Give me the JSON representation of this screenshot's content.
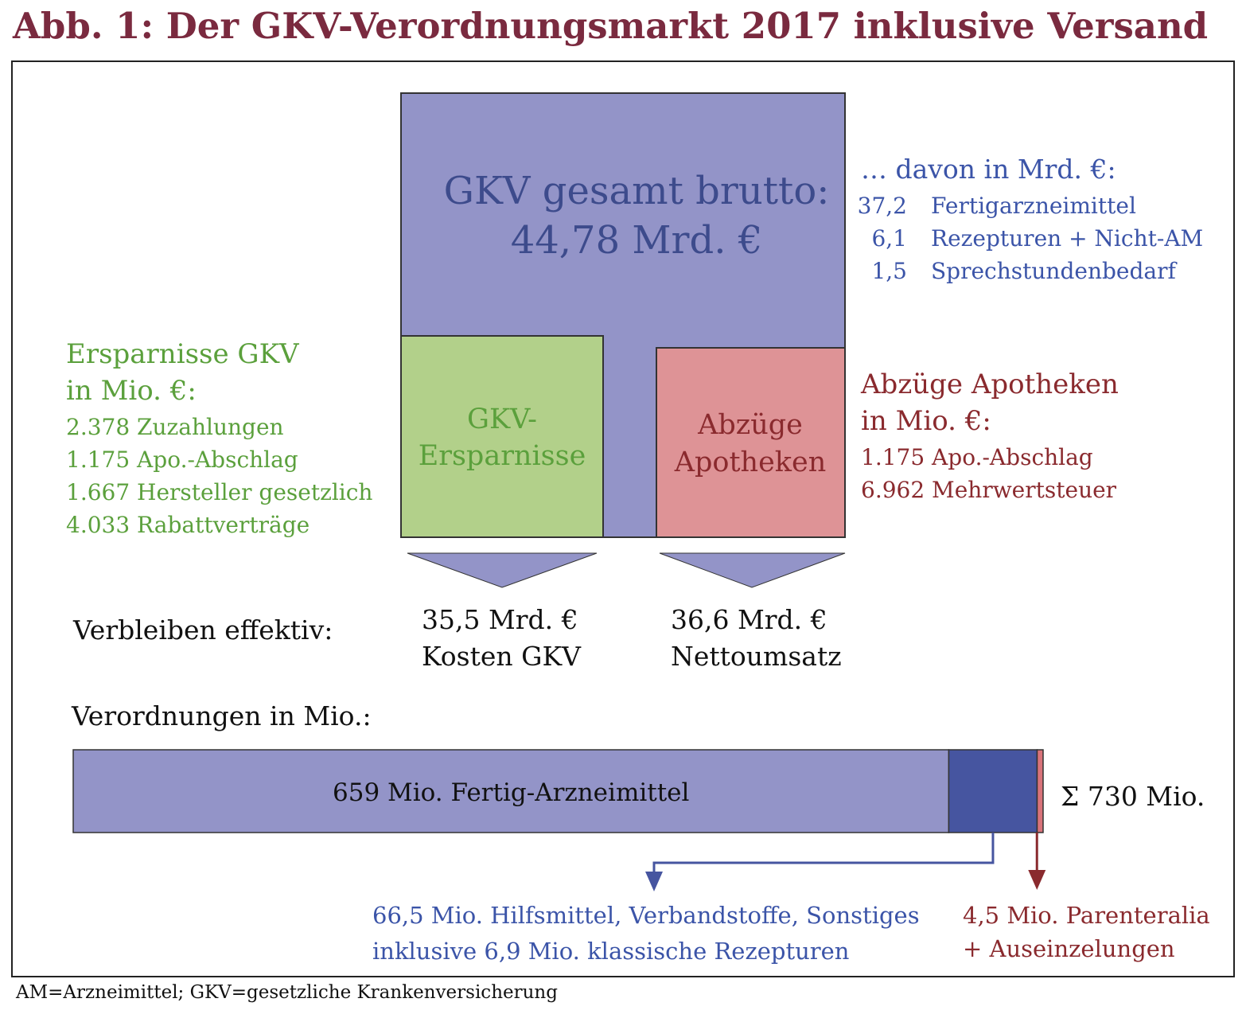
{
  "title": "Abb. 1: Der GKV-Verordnungsmarkt 2017 inklusive Versand",
  "colors": {
    "title": "#7a2a3f",
    "gross_block": "#9394c8",
    "gross_text": "#3d4b8c",
    "savings_block": "#b2d08a",
    "savings_text": "#5ba03c",
    "deductions_block": "#de9396",
    "deductions_text": "#8a2a2e",
    "breakdown_text": "#3b54a8",
    "bar_main": "#9394c8",
    "bar_aids": "#4655a0",
    "bar_parenteral": "#d9737a"
  },
  "gross": {
    "line1": "GKV gesamt brutto:",
    "line2": "44,78 Mrd. €"
  },
  "breakdown": {
    "heading": "… davon in Mrd. €:",
    "items": [
      {
        "value": "37,2",
        "label": "Fertigarzneimittel"
      },
      {
        "value": "6,1",
        "label": "Rezepturen + Nicht-AM"
      },
      {
        "value": "1,5",
        "label": "Sprechstundenbedarf"
      }
    ]
  },
  "savings_box": {
    "line1": "GKV-",
    "line2": "Ersparnisse"
  },
  "deductions_box": {
    "line1": "Abzüge",
    "line2": "Apotheken"
  },
  "savings": {
    "heading1": "Ersparnisse GKV",
    "heading2": "in Mio. €:",
    "items": [
      "2.378 Zuzahlungen",
      "1.175 Apo.-Abschlag",
      "1.667 Hersteller gesetzlich",
      "4.033 Rabattverträge"
    ]
  },
  "deductions": {
    "heading1": "Abzüge Apotheken",
    "heading2": "in Mio. €:",
    "items": [
      "1.175 Apo.-Abschlag",
      "6.962 Mehrwertsteuer"
    ]
  },
  "effective": {
    "label": "Verbleiben effektiv:",
    "cost": {
      "line1": "35,5 Mrd. €",
      "line2": "Kosten GKV"
    },
    "net": {
      "line1": "36,6 Mrd. €",
      "line2": "Nettoumsatz"
    }
  },
  "prescriptions": {
    "heading": "Verordnungen in Mio.:",
    "total_label": "Σ 730 Mio.",
    "total": 730,
    "segments": [
      {
        "value": 659,
        "label": "659 Mio. Fertig-Arzneimittel"
      },
      {
        "value": 66.5
      },
      {
        "value": 4.5
      }
    ],
    "aids_note": {
      "line1": "66,5 Mio. Hilfsmittel, Verbandstoffe, Sonstiges",
      "line2": "inklusive 6,9 Mio. klassische Rezepturen"
    },
    "parenteral_note": {
      "line1": "4,5 Mio. Parenteralia",
      "line2": "+ Auseinzelungen"
    }
  },
  "footnote": "AM=Arzneimittel; GKV=gesetzliche Krankenversicherung"
}
